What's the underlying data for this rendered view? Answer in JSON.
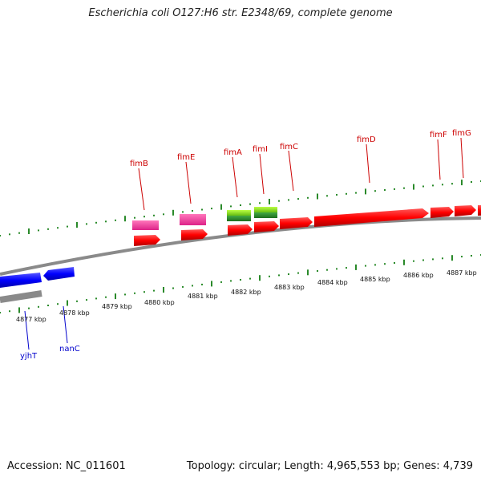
{
  "title": "Escherichia coli O127:H6 str. E2348/69, complete genome",
  "footer": {
    "accession": "Accession: NC_011601",
    "summary": "Topology: circular; Length: 4,965,553 bp; Genes: 4,739"
  },
  "ruler_labels": [
    "4877 kbp",
    "4878 kbp",
    "4879 kbp",
    "4880 kbp",
    "4881 kbp",
    "4882 kbp",
    "4883 kbp",
    "4884 kbp",
    "4885 kbp",
    "4886 kbp",
    "4887 kbp"
  ],
  "genes_top": [
    {
      "name": "fimB",
      "color": "#cc0000"
    },
    {
      "name": "fimE",
      "color": "#cc0000"
    },
    {
      "name": "fimA",
      "color": "#cc0000"
    },
    {
      "name": "fimI",
      "color": "#cc0000"
    },
    {
      "name": "fimC",
      "color": "#cc0000"
    },
    {
      "name": "fimD",
      "color": "#cc0000"
    },
    {
      "name": "fimF",
      "color": "#cc0000"
    },
    {
      "name": "fimG",
      "color": "#cc0000"
    }
  ],
  "genes_bottom": [
    {
      "name": "yjhT",
      "color": "#0000cc"
    },
    {
      "name": "nanC",
      "color": "#0000cc"
    }
  ],
  "colors": {
    "forward_cds": "#ff0000",
    "reverse_cds": "#0000ff",
    "tick": "#2a8a2a",
    "backbone": "#8a8a8a",
    "magenta_feature": "#ee4499",
    "green_feature": "#66cc22"
  }
}
